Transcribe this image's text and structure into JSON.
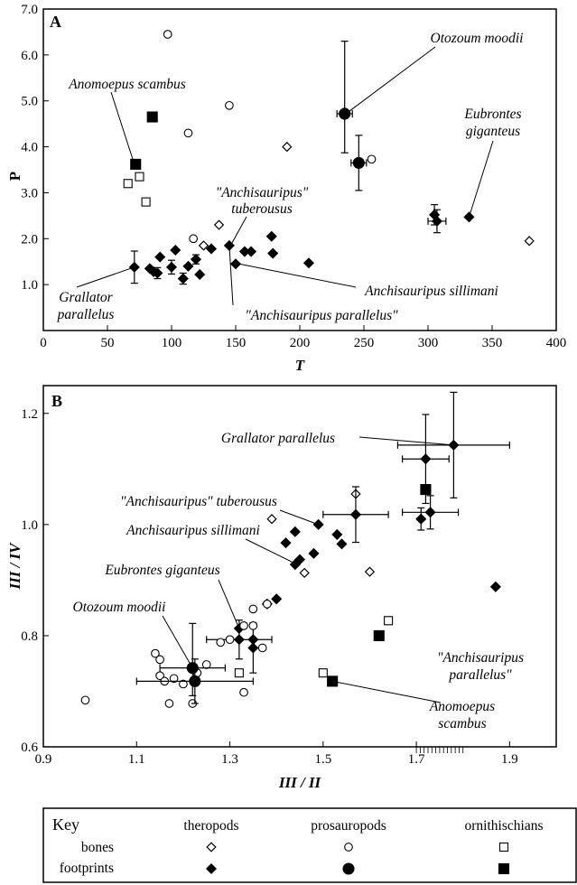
{
  "chart_data": [
    {
      "panel": "A",
      "type": "scatter",
      "xlabel": "T",
      "ylabel": "P",
      "xlim": [
        0,
        400
      ],
      "ylim": [
        0,
        7
      ],
      "xticks": [
        "0",
        "50",
        "100",
        "150",
        "200",
        "250",
        "300",
        "350",
        "400"
      ],
      "yticks": [
        "7.0",
        "6.0",
        "5.0",
        "4.0",
        "3.0",
        "2.0",
        "1.0"
      ],
      "series": [
        {
          "name": "theropods bones",
          "marker": "diamond-open",
          "points": [
            {
              "x": 190,
              "y": 4.0
            },
            {
              "x": 137,
              "y": 2.3
            },
            {
              "x": 379,
              "y": 1.95
            },
            {
              "x": 125,
              "y": 1.85
            }
          ]
        },
        {
          "name": "theropods footprints",
          "marker": "diamond-filled",
          "points": [
            {
              "x": 71,
              "y": 1.38,
              "ey": 0.35
            },
            {
              "x": 83,
              "y": 1.35
            },
            {
              "x": 86,
              "y": 1.28
            },
            {
              "x": 89,
              "y": 1.25,
              "ey": 0.12
            },
            {
              "x": 91,
              "y": 1.6
            },
            {
              "x": 100,
              "y": 1.38,
              "ey": 0.15
            },
            {
              "x": 103,
              "y": 1.75
            },
            {
              "x": 109,
              "y": 1.13,
              "ey": 0.12
            },
            {
              "x": 113,
              "y": 1.4
            },
            {
              "x": 119,
              "y": 1.55,
              "ey": 0.1
            },
            {
              "x": 122,
              "y": 1.22
            },
            {
              "x": 131,
              "y": 1.78
            },
            {
              "x": 145,
              "y": 1.85
            },
            {
              "x": 150,
              "y": 1.45
            },
            {
              "x": 157,
              "y": 1.72
            },
            {
              "x": 162,
              "y": 1.72
            },
            {
              "x": 178,
              "y": 2.05
            },
            {
              "x": 179,
              "y": 1.68
            },
            {
              "x": 207,
              "y": 1.47
            },
            {
              "x": 305,
              "y": 2.52,
              "ey": 0.22
            },
            {
              "x": 307,
              "y": 2.38,
              "ex": 7,
              "ey": 0.25
            },
            {
              "x": 332,
              "y": 2.47
            }
          ]
        },
        {
          "name": "prosauropods bones",
          "marker": "circle-open",
          "points": [
            {
              "x": 97,
              "y": 6.45
            },
            {
              "x": 145,
              "y": 4.9
            },
            {
              "x": 113,
              "y": 4.3
            },
            {
              "x": 256,
              "y": 3.73
            },
            {
              "x": 117,
              "y": 2.0
            }
          ]
        },
        {
          "name": "prosauropods footprints",
          "marker": "circle-filled",
          "points": [
            {
              "x": 235,
              "y": 4.72,
              "ex": 6,
              "eyl": 0.85,
              "eyh": 1.58
            },
            {
              "x": 246,
              "y": 3.65,
              "ex": 6,
              "ey": 0.6
            }
          ]
        },
        {
          "name": "ornithischians bones",
          "marker": "square-open",
          "points": [
            {
              "x": 66,
              "y": 3.2
            },
            {
              "x": 75,
              "y": 3.35
            },
            {
              "x": 80,
              "y": 2.8
            }
          ]
        },
        {
          "name": "ornithischians footprints",
          "marker": "square-filled",
          "points": [
            {
              "x": 85,
              "y": 4.65
            },
            {
              "x": 72,
              "y": 3.62
            }
          ]
        }
      ],
      "annotations": {
        "otozoum": "Otozoum moodii",
        "anomoepus": "Anomoepus scambus",
        "eubrontes_1": "Eubrontes",
        "eubrontes_2": "giganteus",
        "tuberousus_1": "\"Anchisauripus\"",
        "tuberousus_2": "tuberousus",
        "grallator_1": "Grallator",
        "grallator_2": "parallelus",
        "sillimani": "Anchisauripus sillimani",
        "parallelus": "\"Anchisauripus parallelus\""
      }
    },
    {
      "panel": "B",
      "type": "scatter",
      "xlabel": "III / II",
      "ylabel": "III / IV",
      "xlim": [
        0.9,
        2.0
      ],
      "ylim": [
        0.6,
        1.25
      ],
      "xticks": [
        "0.9",
        "1.1",
        "1.3",
        "1.5",
        "1.7",
        "1.9"
      ],
      "yticks": [
        "1.2",
        "1.0",
        "0.8",
        "0.6"
      ],
      "series": [
        {
          "name": "theropods bones",
          "marker": "diamond-open",
          "points": [
            {
              "x": 1.39,
              "y": 1.01
            },
            {
              "x": 1.57,
              "y": 1.055
            },
            {
              "x": 1.6,
              "y": 0.915
            },
            {
              "x": 1.46,
              "y": 0.913
            }
          ]
        },
        {
          "name": "theropods footprints",
          "marker": "diamond-filled",
          "points": [
            {
              "x": 1.78,
              "y": 1.143,
              "ex": 0.12,
              "ey": 0.095
            },
            {
              "x": 1.72,
              "y": 1.118,
              "ex": 0.05,
              "ey": 0.08
            },
            {
              "x": 1.57,
              "y": 1.018,
              "ex": 0.07,
              "ey": 0.05
            },
            {
              "x": 1.49,
              "y": 1.0
            },
            {
              "x": 1.73,
              "y": 1.022,
              "ex": 0.06,
              "ey": 0.03
            },
            {
              "x": 1.71,
              "y": 1.01,
              "ey": 0.02
            },
            {
              "x": 1.44,
              "y": 0.987
            },
            {
              "x": 1.53,
              "y": 0.982
            },
            {
              "x": 1.42,
              "y": 0.967
            },
            {
              "x": 1.54,
              "y": 0.965
            },
            {
              "x": 1.48,
              "y": 0.948
            },
            {
              "x": 1.45,
              "y": 0.937
            },
            {
              "x": 1.44,
              "y": 0.928
            },
            {
              "x": 1.4,
              "y": 0.866
            },
            {
              "x": 1.38,
              "y": 0.857
            },
            {
              "x": 1.87,
              "y": 0.888
            },
            {
              "x": 1.32,
              "y": 0.793,
              "ex": 0.07,
              "ey": 0.035
            },
            {
              "x": 1.32,
              "y": 0.813
            },
            {
              "x": 1.35,
              "y": 0.793
            },
            {
              "x": 1.35,
              "y": 0.778,
              "ey": 0.045
            }
          ]
        },
        {
          "name": "prosauropods bones",
          "marker": "circle-open",
          "points": [
            {
              "x": 0.99,
              "y": 0.684
            },
            {
              "x": 1.14,
              "y": 0.768
            },
            {
              "x": 1.15,
              "y": 0.757
            },
            {
              "x": 1.15,
              "y": 0.728
            },
            {
              "x": 1.16,
              "y": 0.718
            },
            {
              "x": 1.17,
              "y": 0.678
            },
            {
              "x": 1.18,
              "y": 0.723
            },
            {
              "x": 1.2,
              "y": 0.713
            },
            {
              "x": 1.22,
              "y": 0.678
            },
            {
              "x": 1.23,
              "y": 0.733
            },
            {
              "x": 1.25,
              "y": 0.748
            },
            {
              "x": 1.28,
              "y": 0.788
            },
            {
              "x": 1.3,
              "y": 0.793
            },
            {
              "x": 1.33,
              "y": 0.818
            },
            {
              "x": 1.33,
              "y": 0.698
            },
            {
              "x": 1.35,
              "y": 0.818
            },
            {
              "x": 1.35,
              "y": 0.848
            },
            {
              "x": 1.37,
              "y": 0.778
            },
            {
              "x": 1.38,
              "y": 0.857
            }
          ]
        },
        {
          "name": "prosauropods footprints",
          "marker": "circle-filled",
          "points": [
            {
              "x": 1.22,
              "y": 0.742,
              "ex": 0.07,
              "eyl": 0.05,
              "eyh": 0.08
            },
            {
              "x": 1.225,
              "y": 0.718,
              "ex": 0.125,
              "ey": 0.04
            }
          ]
        },
        {
          "name": "ornithischians bones",
          "marker": "square-open",
          "points": [
            {
              "x": 1.5,
              "y": 0.733
            },
            {
              "x": 1.64,
              "y": 0.827
            },
            {
              "x": 1.32,
              "y": 0.733
            },
            {
              "x": 1.72,
              "y": 1.063
            }
          ]
        },
        {
          "name": "ornithischians footprints",
          "marker": "square-filled",
          "points": [
            {
              "x": 1.62,
              "y": 0.8
            },
            {
              "x": 1.52,
              "y": 0.718
            },
            {
              "x": 1.72,
              "y": 1.063
            }
          ]
        }
      ],
      "annotations": {
        "grallator": "Grallator parallelus",
        "tuberousus": "\"Anchisauripus\" tuberousus",
        "sillimani": "Anchisauripus sillimani",
        "eubrontes": "Eubrontes giganteus",
        "otozoum": "Otozoum moodii",
        "parallelus_1": "\"Anchisauripus",
        "parallelus_2": "parallelus\"",
        "anomoepus_1": "Anomoepus",
        "anomoepus_2": "scambus"
      }
    }
  ],
  "key": {
    "title": "Key",
    "columns": [
      "theropods",
      "prosauropods",
      "ornithischians"
    ],
    "rows": [
      "bones",
      "footprints"
    ]
  }
}
